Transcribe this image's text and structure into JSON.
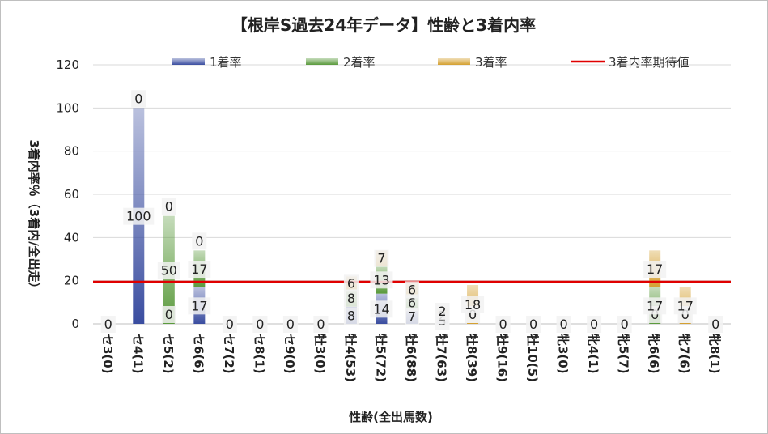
{
  "chart_data": {
    "type": "bar",
    "title": "【根岸S過去24年データ】性齢と3着内率",
    "xlabel": "性齢(全出馬数)",
    "ylabel": "3着内率％（3着内/全出走）",
    "ylim": [
      0,
      120
    ],
    "yticks": [
      0,
      20,
      40,
      60,
      80,
      100,
      120
    ],
    "grid": true,
    "legend_position": "top",
    "stacked": true,
    "categories": [
      "セ3(0)",
      "セ4(1)",
      "セ5(2)",
      "セ6(6)",
      "セ7(2)",
      "セ8(1)",
      "セ9(0)",
      "牡3(0)",
      "牡4(53)",
      "牡5(72)",
      "牡6(88)",
      "牡7(63)",
      "牡8(39)",
      "牡9(16)",
      "牡10(5)",
      "牝3(0)",
      "牝4(1)",
      "牝5(7)",
      "牝6(6)",
      "牝7(6)",
      "牝8(1)"
    ],
    "series": [
      {
        "name": "1着率",
        "color": "#3a4da0",
        "values": [
          0,
          100,
          0,
          17,
          0,
          0,
          0,
          0,
          8,
          14,
          7,
          3,
          0,
          0,
          0,
          0,
          0,
          0,
          0,
          0,
          0
        ]
      },
      {
        "name": "2着率",
        "color": "#5a9a3c",
        "values": [
          0,
          0,
          50,
          17,
          0,
          0,
          0,
          0,
          8,
          13,
          6,
          2,
          0,
          0,
          0,
          0,
          0,
          0,
          17,
          0,
          0
        ]
      },
      {
        "name": "3着率",
        "color": "#d4a030",
        "values": [
          0,
          0,
          0,
          0,
          0,
          0,
          0,
          0,
          6,
          7,
          6,
          2,
          18,
          0,
          0,
          0,
          0,
          0,
          17,
          17,
          0
        ]
      }
    ],
    "expected_line": {
      "name": "3着内率期待値",
      "color": "#e00000",
      "value": 19.5
    }
  }
}
